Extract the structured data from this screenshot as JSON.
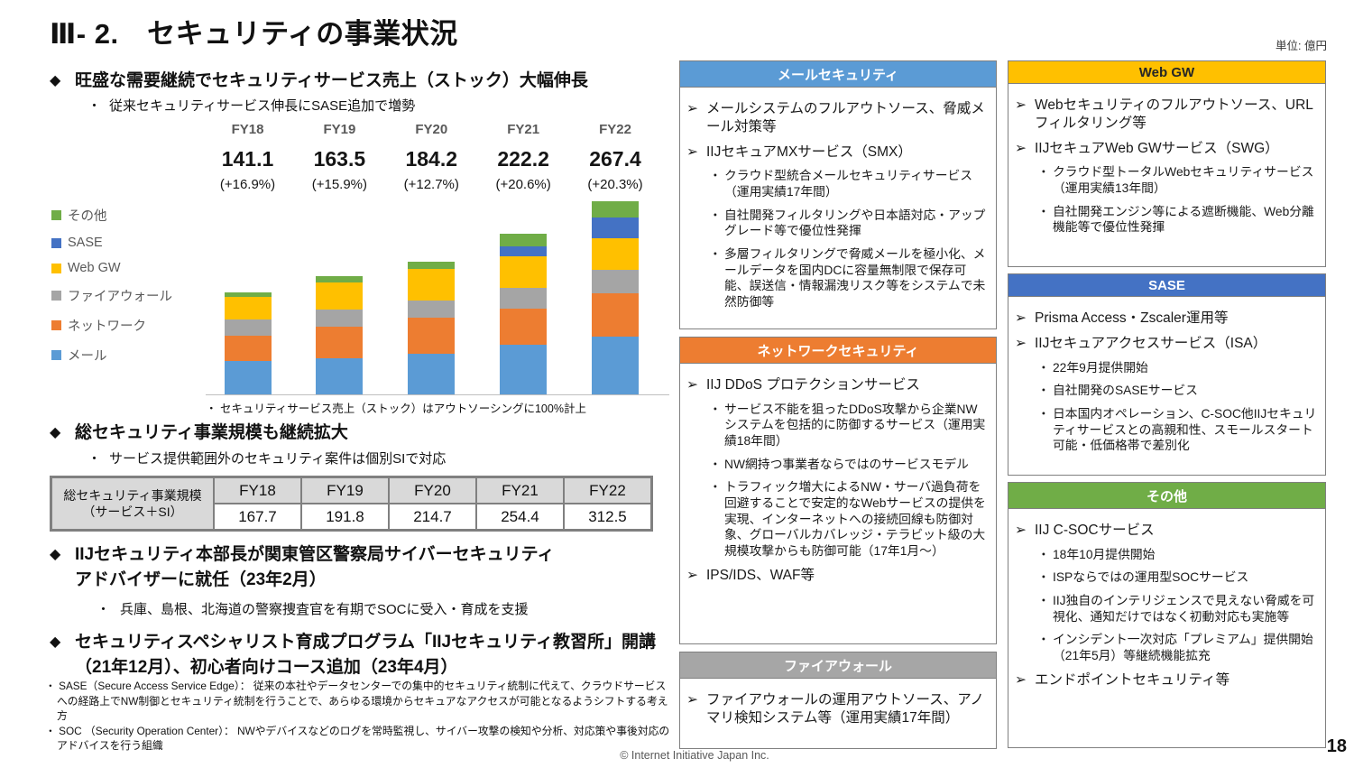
{
  "slide": {
    "title": "Ⅲ- 2.　セキュリティの事業状況",
    "unit_note": "単位: 億円",
    "footer": "© Internet Initiative Japan Inc.",
    "page_number": "18"
  },
  "left": {
    "sections": [
      {
        "heading": "旺盛な需要継続でセキュリティサービス売上（ストック）大幅伸長",
        "sub": "従来セキュリティサービス伸長にSASE追加で増勢"
      },
      {
        "heading": "総セキュリティ事業規模も継続拡大",
        "sub": "サービス提供範囲外のセキュリティ案件は個別SIで対応"
      },
      {
        "heading": "IIJセキュリティ本部長が関東管区警察局サイバーセキュリティ\nアドバイザーに就任（23年2月）",
        "sub": "兵庫、島根、北海道の警察捜査官を有期でSOCに受入・育成を支援"
      },
      {
        "heading": "セキュリティスペシャリスト育成プログラム「IIJセキュリティ教習所」開講\n（21年12月）、初心者向けコース追加（23年4月）",
        "sub": ""
      }
    ],
    "footnotes": [
      "・ SASE（Secure Access Service Edge）： 従来の本社やデータセンターでの集中的セキュリティ統制に代えて、クラウドサービスへの経路上でNW制御とセキュリティ統制を行うことで、あらゆる環境からセキュアなアクセスが可能となるようシフトする考え方",
      "・ SOC （Security Operation Center）： NWやデバイスなどのログを常時監視し、サイバー攻撃の検知や分析、対応策や事後対応のアドバイスを行う組織"
    ]
  },
  "chart_data": {
    "type": "bar",
    "stacked": true,
    "unit": "億円",
    "categories": [
      "FY18",
      "FY19",
      "FY20",
      "FY21",
      "FY22"
    ],
    "totals": [
      141.1,
      163.5,
      184.2,
      222.2,
      267.4
    ],
    "totals_display": [
      "141.1",
      "163.5",
      "184.2",
      "222.2",
      "267.4"
    ],
    "growth_display": [
      "(+16.9%)",
      "(+15.9%)",
      "(+12.7%)",
      "(+20.6%)",
      "(+20.3%)"
    ],
    "series": [
      {
        "name": "その他",
        "color": "#70AD47",
        "values": [
          6,
          8.5,
          10,
          17,
          23
        ]
      },
      {
        "name": "SASE",
        "color": "#4472C4",
        "values": [
          0,
          0,
          0,
          14,
          28
        ]
      },
      {
        "name": "Web GW",
        "color": "#FFC000",
        "values": [
          31,
          38,
          44,
          44,
          44
        ]
      },
      {
        "name": "ファイアウォール",
        "color": "#A5A5A5",
        "values": [
          23,
          23,
          24,
          29,
          32
        ]
      },
      {
        "name": "ネットワーク",
        "color": "#ED7D31",
        "values": [
          35,
          44,
          50,
          50,
          61
        ]
      },
      {
        "name": "メール",
        "color": "#5B9BD5",
        "values": [
          46.1,
          50,
          56.2,
          68.2,
          79.4
        ]
      }
    ],
    "ylim": [
      0,
      280
    ],
    "legend_position": "left",
    "note": "・ セキュリティサービス売上（ストック）はアウトソーシングに100%計上"
  },
  "table": {
    "row_header": "総セキュリティ事業規模\n（サービス＋SI）",
    "columns": [
      "FY18",
      "FY19",
      "FY20",
      "FY21",
      "FY22"
    ],
    "values": [
      "167.7",
      "191.8",
      "214.7",
      "254.4",
      "312.5"
    ]
  },
  "boxes": [
    {
      "column": "mid",
      "title": "メールセキュリティ",
      "header_bg": "#5B9BD5",
      "header_fg": "#FFFFFF",
      "items": [
        {
          "level": 1,
          "text": "メールシステムのフルアウトソース、脅威メール対策等"
        },
        {
          "level": 1,
          "text": "IIJセキュアMXサービス（SMX）"
        },
        {
          "level": 2,
          "text": "クラウド型統合メールセキュリティサービス（運用実績17年間）"
        },
        {
          "level": 2,
          "text": "自社開発フィルタリングや日本語対応・アップグレード等で優位性発揮"
        },
        {
          "level": 2,
          "text": "多層フィルタリングで脅威メールを極小化、メールデータを国内DCに容量無制限で保存可能、誤送信・情報漏洩リスク等をシステムで未然防御等"
        }
      ]
    },
    {
      "column": "mid",
      "title": "ネットワークセキュリティ",
      "header_bg": "#ED7D31",
      "header_fg": "#FFFFFF",
      "items": [
        {
          "level": 1,
          "text": "IIJ DDoS プロテクションサービス"
        },
        {
          "level": 2,
          "text": "サービス不能を狙ったDDoS攻撃から企業NWシステムを包括的に防御するサービス（運用実績18年間）"
        },
        {
          "level": 2,
          "text": "NW網持つ事業者ならではのサービスモデル"
        },
        {
          "level": 2,
          "text": "トラフィック増大によるNW・サーバ過負荷を回避することで安定的なWebサービスの提供を実現、インターネットへの接続回線も防御対象、グローバルカバレッジ・テラビット級の大規模攻撃からも防御可能（17年1月～）"
        },
        {
          "level": 1,
          "text": "IPS/IDS、WAF等"
        }
      ]
    },
    {
      "column": "mid",
      "title": "ファイアウォール",
      "header_bg": "#A6A6A6",
      "header_fg": "#FFFFFF",
      "items": [
        {
          "level": 1,
          "text": "ファイアウォールの運用アウトソース、アノマリ検知システム等（運用実績17年間）"
        }
      ]
    },
    {
      "column": "right",
      "title": "Web GW",
      "header_bg": "#FFC000",
      "header_fg": "#262626",
      "items": [
        {
          "level": 1,
          "text": "Webセキュリティのフルアウトソース、URLフィルタリング等"
        },
        {
          "level": 1,
          "text": "IIJセキュアWeb GWサービス（SWG）"
        },
        {
          "level": 2,
          "text": "クラウド型トータルWebセキュリティサービス（運用実績13年間）"
        },
        {
          "level": 2,
          "text": "自社開発エンジン等による遮断機能、Web分離機能等で優位性発揮"
        }
      ]
    },
    {
      "column": "right",
      "title": "SASE",
      "header_bg": "#4472C4",
      "header_fg": "#FFFFFF",
      "items": [
        {
          "level": 1,
          "text": "Prisma Access・Zscaler運用等"
        },
        {
          "level": 1,
          "text": "IIJセキュアアクセスサービス（ISA）"
        },
        {
          "level": 2,
          "text": "22年9月提供開始"
        },
        {
          "level": 2,
          "text": "自社開発のSASEサービス"
        },
        {
          "level": 2,
          "text": "日本国内オペレーション、C-SOC他IIJセキュリティサービスとの高親和性、スモールスタート可能・低価格帯で差別化"
        }
      ]
    },
    {
      "column": "right",
      "title": "その他",
      "header_bg": "#70AD47",
      "header_fg": "#FFFFFF",
      "items": [
        {
          "level": 1,
          "text": "IIJ C-SOCサービス"
        },
        {
          "level": 2,
          "text": "18年10月提供開始"
        },
        {
          "level": 2,
          "text": "ISPならではの運用型SOCサービス"
        },
        {
          "level": 2,
          "text": "IIJ独自のインテリジェンスで見えない脅威を可視化、通知だけではなく初動対応も実施等"
        },
        {
          "level": 2,
          "text": "インシデント一次対応「プレミアム」提供開始（21年5月）等継続機能拡充"
        },
        {
          "level": 1,
          "text": "エンドポイントセキュリティ等"
        }
      ]
    }
  ]
}
